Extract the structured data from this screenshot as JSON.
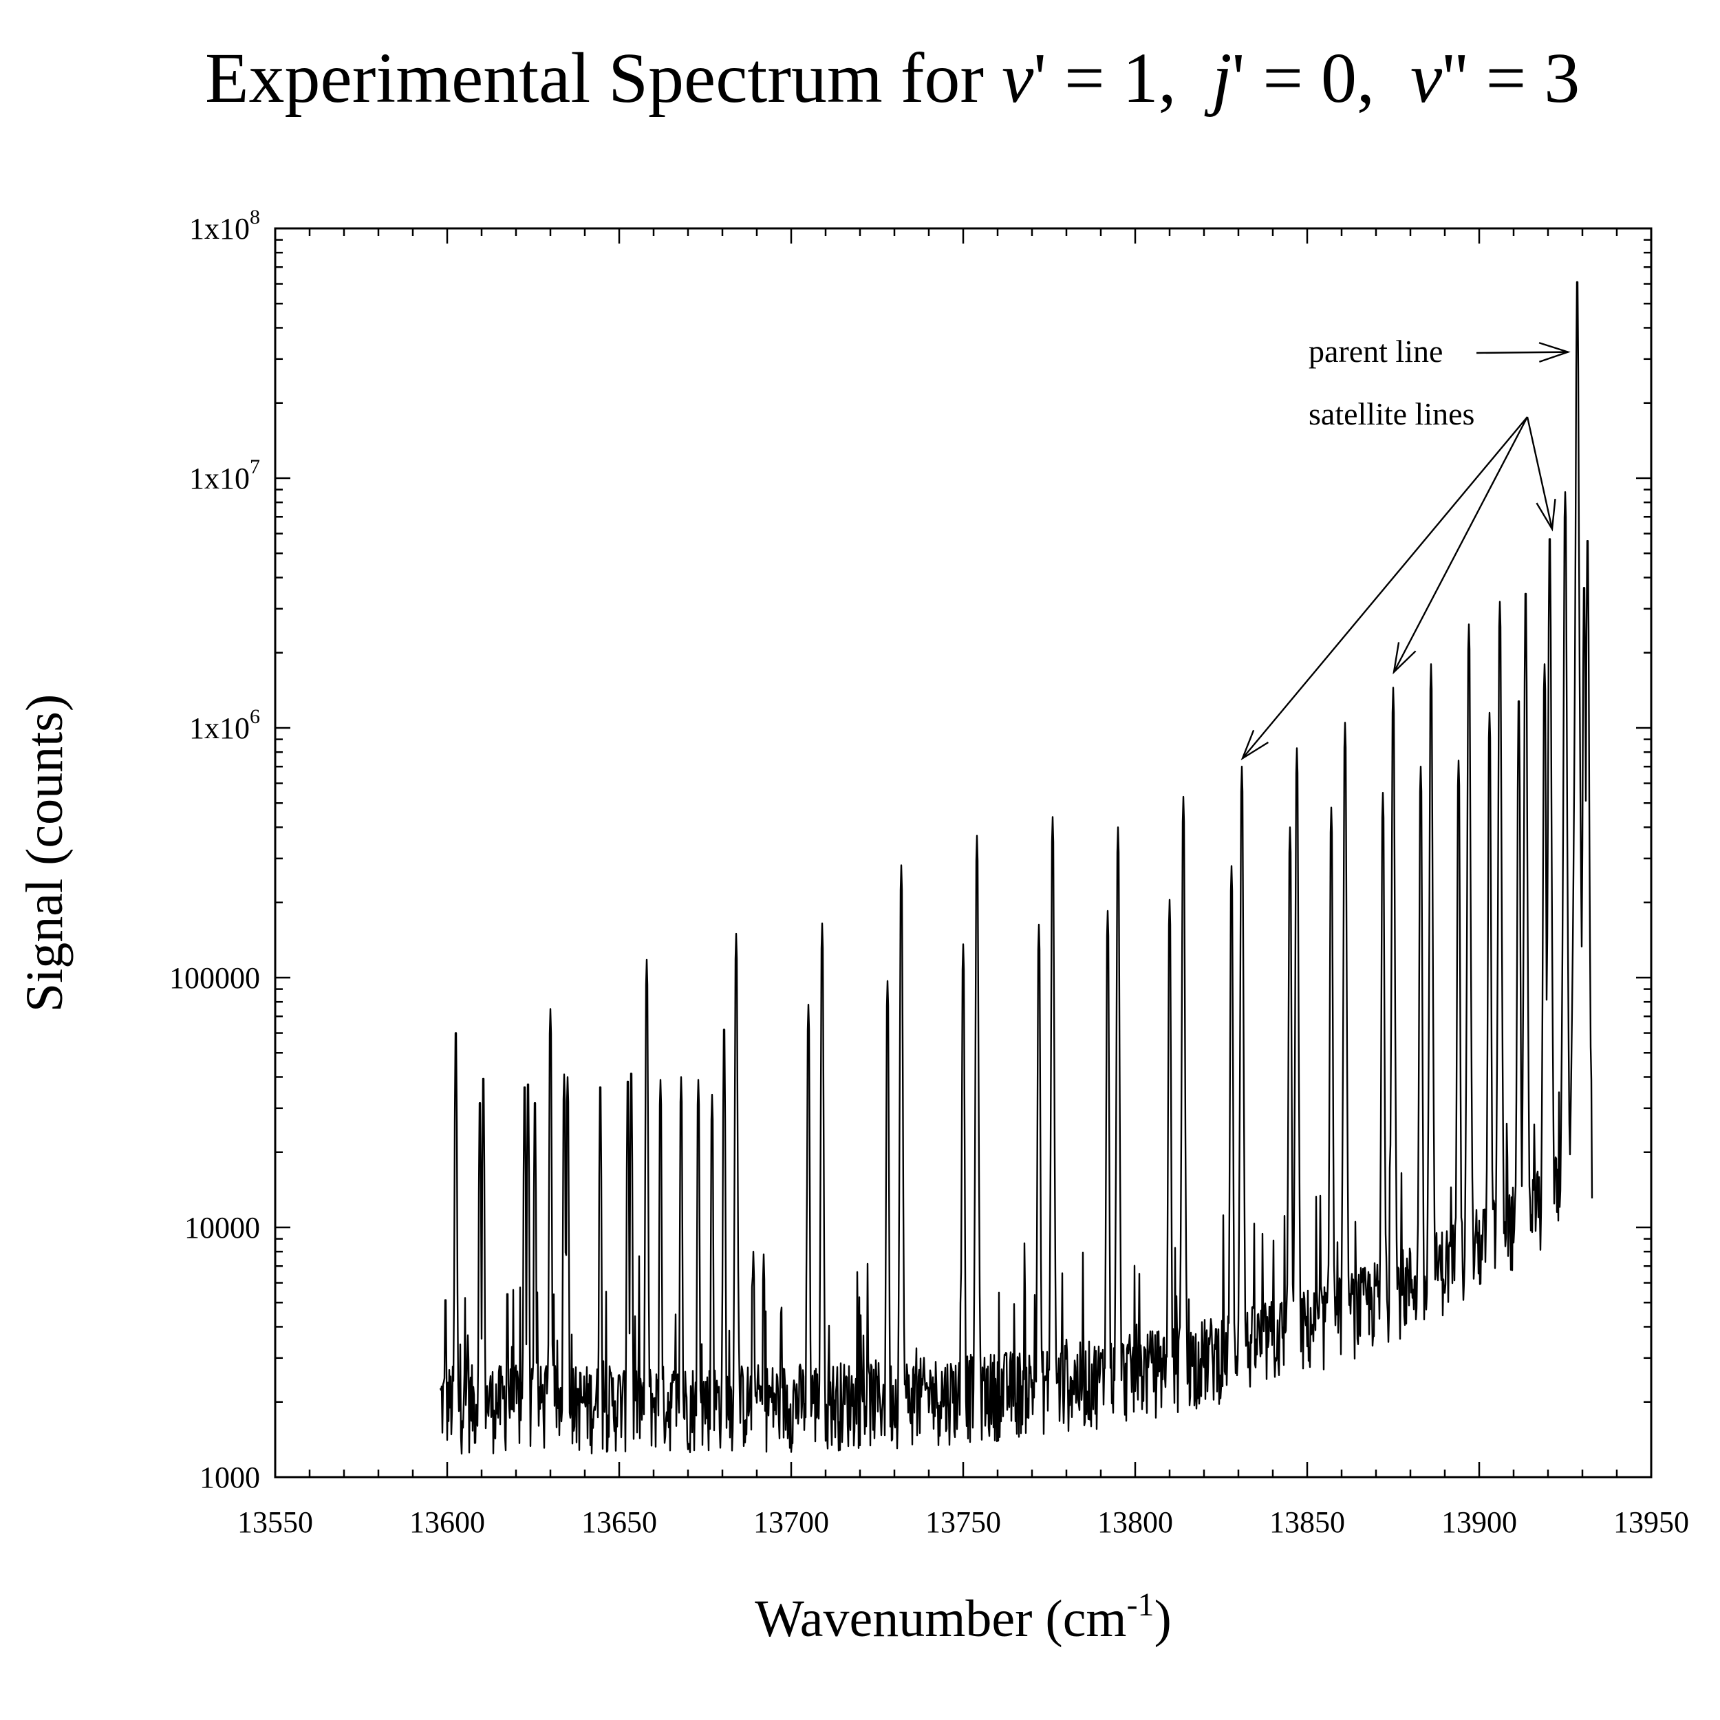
{
  "chart_data": {
    "type": "line",
    "title": {
      "prefix": "Experimental Spectrum for ",
      "terms": [
        {
          "symbol": "v",
          "prime": "'",
          "value": "= 1,"
        },
        {
          "symbol": "j",
          "prime": "'",
          "value": "= 0,"
        },
        {
          "symbol": "v",
          "prime": "''",
          "value": "= 3"
        }
      ]
    },
    "xlabel": {
      "text": "Wavenumber (cm",
      "sup": "-1",
      "suffix": ")"
    },
    "ylabel": "Signal (counts)",
    "x_scale": "linear",
    "y_scale": "log",
    "xlim": [
      13550,
      13950
    ],
    "ylim": [
      1000,
      100000000
    ],
    "x_ticks": [
      {
        "value": 13550,
        "label": "13550"
      },
      {
        "value": 13600,
        "label": "13600"
      },
      {
        "value": 13650,
        "label": "13650"
      },
      {
        "value": 13700,
        "label": "13700"
      },
      {
        "value": 13750,
        "label": "13750"
      },
      {
        "value": 13800,
        "label": "13800"
      },
      {
        "value": 13850,
        "label": "13850"
      },
      {
        "value": 13900,
        "label": "13900"
      },
      {
        "value": 13950,
        "label": "13950"
      }
    ],
    "y_ticks": [
      {
        "value": 1000,
        "label": "1000"
      },
      {
        "value": 10000,
        "label": "10000"
      },
      {
        "value": 100000,
        "label": "100000"
      },
      {
        "value": 1000000,
        "base": "1x10",
        "exp": "6"
      },
      {
        "value": 10000000,
        "base": "1x10",
        "exp": "7"
      },
      {
        "value": 100000000,
        "base": "1x10",
        "exp": "8"
      }
    ],
    "grid": false,
    "legend": "none",
    "series": [
      {
        "x_start": 13598,
        "x_end": 13933,
        "baseline_start": 2200,
        "baseline_end": 20000,
        "peaks": [
          [
            13599.5,
            5200
          ],
          [
            13602.5,
            61000
          ],
          [
            13606,
            3700
          ],
          [
            13609.5,
            32000
          ],
          [
            13610.5,
            40000
          ],
          [
            13617.5,
            5500
          ],
          [
            13622.5,
            37000
          ],
          [
            13623.5,
            38000
          ],
          [
            13625.5,
            32000
          ],
          [
            13630,
            75000
          ],
          [
            13634,
            41000
          ],
          [
            13635,
            40000
          ],
          [
            13644.5,
            37000
          ],
          [
            13652.5,
            39000
          ],
          [
            13653.5,
            42000
          ],
          [
            13658,
            118000
          ],
          [
            13662,
            39000
          ],
          [
            13668,
            40000
          ],
          [
            13673,
            39000
          ],
          [
            13677,
            34000
          ],
          [
            13680.5,
            63000
          ],
          [
            13684,
            150000
          ],
          [
            13689,
            8000
          ],
          [
            13692,
            7800
          ],
          [
            13705,
            78000
          ],
          [
            13709,
            165000
          ],
          [
            13728,
            97000
          ],
          [
            13732,
            282000
          ],
          [
            13750,
            136000
          ],
          [
            13754,
            370000
          ],
          [
            13772,
            163000
          ],
          [
            13776,
            440000
          ],
          [
            13792,
            185000
          ],
          [
            13795,
            400000
          ],
          [
            13810,
            205000
          ],
          [
            13814,
            530000
          ],
          [
            13828,
            280000
          ],
          [
            13831,
            700000
          ],
          [
            13845,
            400000
          ],
          [
            13847,
            830000
          ],
          [
            13857,
            480000
          ],
          [
            13861,
            1050000
          ],
          [
            13872,
            550000
          ],
          [
            13875,
            1450000
          ],
          [
            13883,
            700000
          ],
          [
            13886,
            1800000
          ],
          [
            13894,
            740000
          ],
          [
            13897,
            2600000
          ],
          [
            13903,
            1150000
          ],
          [
            13906,
            3200000
          ],
          [
            13911.5,
            1300000
          ],
          [
            13913.5,
            3500000
          ],
          [
            13919,
            1800000
          ],
          [
            13920.5,
            5800000
          ],
          [
            13925,
            8800000
          ],
          [
            13928.5,
            62000000
          ],
          [
            13930.5,
            3700000
          ],
          [
            13931.5,
            5700000
          ]
        ]
      }
    ],
    "annotations": [
      {
        "text": "parent line",
        "target_x": 13927,
        "target_y": 32000000
      },
      {
        "text": "satellite lines",
        "targets": [
          [
            13830,
            700000
          ],
          [
            13874,
            1550000
          ],
          [
            13920,
            5800000
          ]
        ]
      }
    ]
  }
}
